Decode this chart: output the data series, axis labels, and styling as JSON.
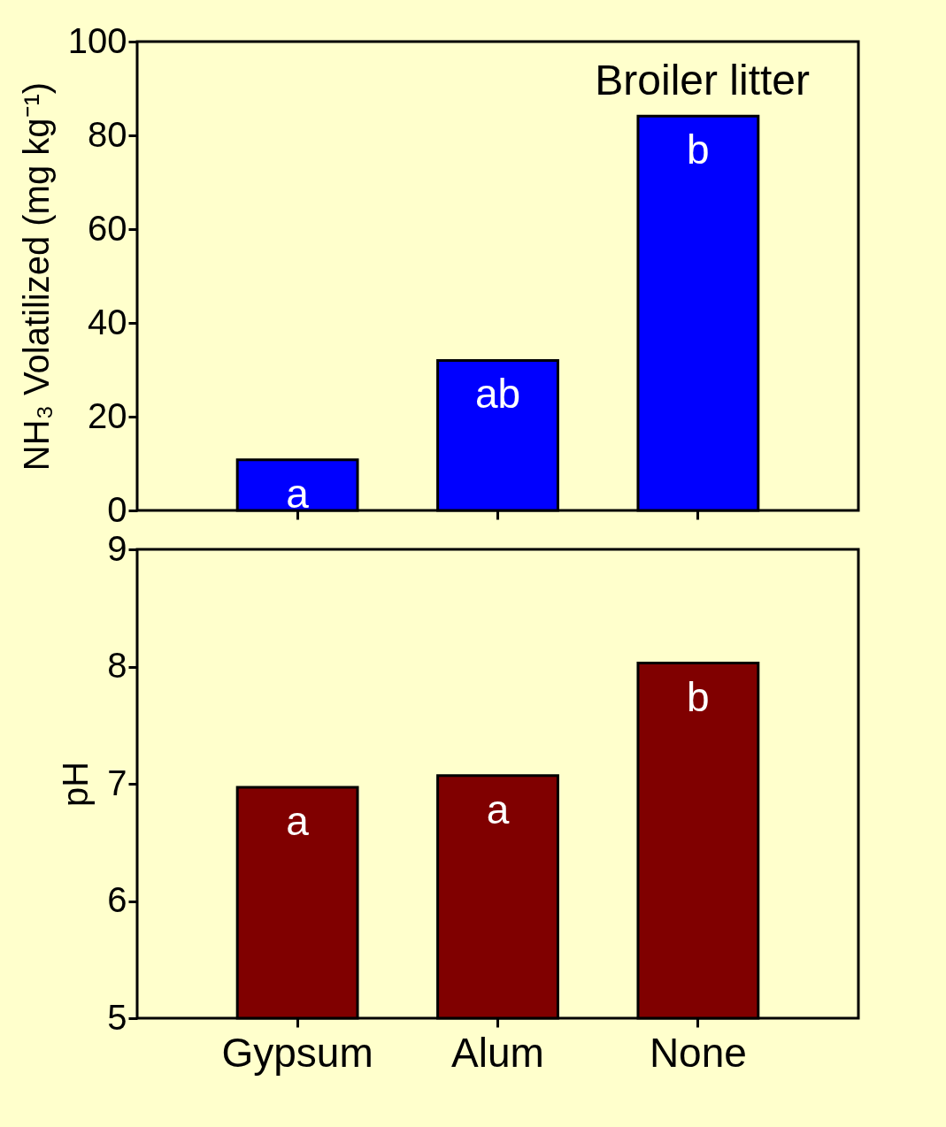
{
  "chart_data": [
    {
      "type": "bar",
      "ylabel": "NH₃ Volatilized (mg kg⁻¹)",
      "categories": [
        "Gypsum",
        "Alum",
        "None"
      ],
      "values": [
        10.8,
        32.0,
        84.1
      ],
      "color": "#0000ff",
      "ylim": [
        0,
        100
      ],
      "yticks": [
        0,
        20,
        40,
        60,
        80,
        100
      ],
      "tick_labels": "y",
      "annotations": [
        {
          "text": "a",
          "x": "Gypsum",
          "y": 10.8
        },
        {
          "text": "ab",
          "x": "Alum",
          "y": 32.0
        },
        {
          "text": "b",
          "x": "None",
          "y": 84.1
        },
        "Broiler litter"
      ]
    },
    {
      "type": "bar",
      "ylabel": "pH",
      "categories": [
        "Gypsum",
        "Alum",
        "None"
      ],
      "values": [
        6.97,
        7.07,
        8.03
      ],
      "color": "#800000",
      "ylim": [
        5,
        9
      ],
      "yticks": [
        5,
        6,
        7,
        8,
        9
      ],
      "annotations": [
        {
          "text": "a",
          "x": "Gypsum",
          "y": 6.97
        },
        {
          "text": "a",
          "x": "Alum",
          "y": 7.07
        },
        {
          "text": "b",
          "x": "None",
          "y": 8.03
        }
      ]
    }
  ]
}
